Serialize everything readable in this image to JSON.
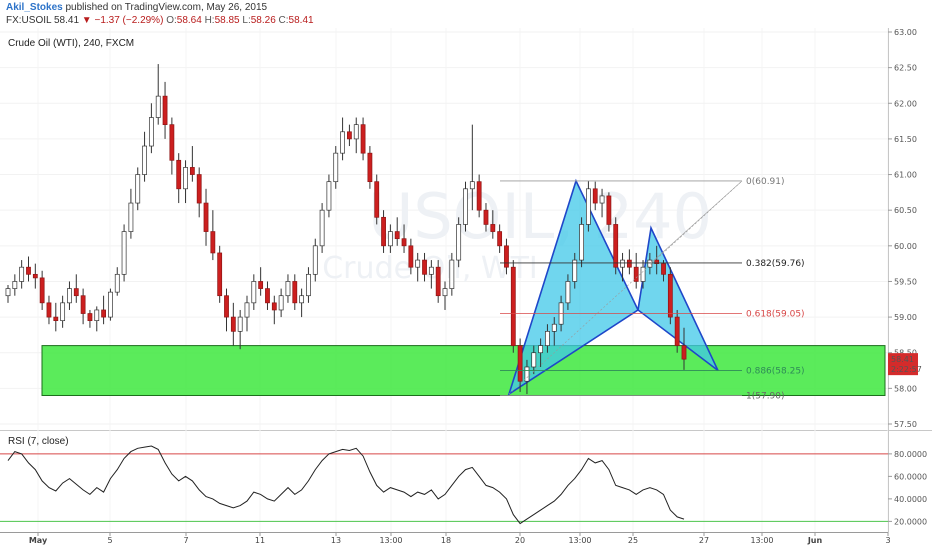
{
  "header": {
    "author": "Akil_Stokes",
    "published_text": " published on TradingView.com, May 26, 2015",
    "symbol": "FX:USOIL",
    "last": "58.41",
    "change": "▼ −1.37 (−2.29%)",
    "open_label": "O:",
    "open": "58.64",
    "high_label": "H:",
    "high": "58.85",
    "low_label": "L:",
    "low": "58.26",
    "close_label": "C:",
    "close": "58.41"
  },
  "chart_title": "Crude Oil (WTI), 240, FXCM",
  "watermark": {
    "line1": "USOIL, 240",
    "line2": "Crude Oil, WTI"
  },
  "price_badge": {
    "price": "58.41",
    "countdown": "2:22:57"
  },
  "rsi_title": "RSI (7, close)",
  "colors": {
    "bull": "#ffffff",
    "bear": "#cc1f1f",
    "wick": "#333333",
    "zone_fill": "#3ee83e",
    "zone_border": "#1b6e1b",
    "pattern_fill": "#40c8e8",
    "pattern_line": "#1f47c9",
    "rsi_line": "#222222",
    "rsi_upper": "#d84848",
    "rsi_lower": "#4cc44c"
  },
  "chart_data": [
    {
      "type": "candlestick",
      "title": "Crude Oil (WTI), 240, FXCM",
      "ylim": [
        57.5,
        63.0
      ],
      "yticks": [
        "63.00",
        "62.50",
        "62.00",
        "61.50",
        "61.00",
        "60.50",
        "60.00",
        "59.50",
        "59.00",
        "58.50",
        "58.00",
        "57.50"
      ],
      "xticks": [
        "May",
        "5",
        "7",
        "11",
        "13",
        "13:00",
        "18",
        "20",
        "13:00",
        "25",
        "27",
        "13:00",
        "Jun",
        "3"
      ],
      "ohlc": [
        [
          59.3,
          59.45,
          59.2,
          59.4
        ],
        [
          59.4,
          59.6,
          59.3,
          59.5
        ],
        [
          59.5,
          59.8,
          59.4,
          59.7
        ],
        [
          59.7,
          59.85,
          59.5,
          59.6
        ],
        [
          59.6,
          59.75,
          59.4,
          59.55
        ],
        [
          59.55,
          59.65,
          59.1,
          59.2
        ],
        [
          59.2,
          59.3,
          58.9,
          59.0
        ],
        [
          59.0,
          59.2,
          58.8,
          58.95
        ],
        [
          58.95,
          59.3,
          58.85,
          59.2
        ],
        [
          59.2,
          59.5,
          59.1,
          59.4
        ],
        [
          59.4,
          59.6,
          59.2,
          59.3
        ],
        [
          59.3,
          59.4,
          58.9,
          59.05
        ],
        [
          59.05,
          59.1,
          58.85,
          58.95
        ],
        [
          58.95,
          59.15,
          58.8,
          59.1
        ],
        [
          59.1,
          59.3,
          58.9,
          59.0
        ],
        [
          59.0,
          59.4,
          58.95,
          59.35
        ],
        [
          59.35,
          59.7,
          59.3,
          59.6
        ],
        [
          59.6,
          60.3,
          59.5,
          60.2
        ],
        [
          60.2,
          60.8,
          60.1,
          60.6
        ],
        [
          60.6,
          61.1,
          60.5,
          61.0
        ],
        [
          61.0,
          61.6,
          60.9,
          61.4
        ],
        [
          61.4,
          62.0,
          61.3,
          61.8
        ],
        [
          61.8,
          62.55,
          61.7,
          62.1
        ],
        [
          62.1,
          62.3,
          61.5,
          61.7
        ],
        [
          61.7,
          61.8,
          61.0,
          61.2
        ],
        [
          61.2,
          61.3,
          60.6,
          60.8
        ],
        [
          60.8,
          61.2,
          60.6,
          61.1
        ],
        [
          61.1,
          61.4,
          60.9,
          61.0
        ],
        [
          61.0,
          61.1,
          60.4,
          60.6
        ],
        [
          60.6,
          60.8,
          60.0,
          60.2
        ],
        [
          60.2,
          60.5,
          59.8,
          59.9
        ],
        [
          59.9,
          60.0,
          59.2,
          59.3
        ],
        [
          59.3,
          59.4,
          58.8,
          59.0
        ],
        [
          59.0,
          59.2,
          58.6,
          58.8
        ],
        [
          58.8,
          59.1,
          58.55,
          59.0
        ],
        [
          59.0,
          59.3,
          58.8,
          59.2
        ],
        [
          59.2,
          59.6,
          59.1,
          59.5
        ],
        [
          59.5,
          59.7,
          59.3,
          59.4
        ],
        [
          59.4,
          59.5,
          59.1,
          59.2
        ],
        [
          59.2,
          59.3,
          58.9,
          59.1
        ],
        [
          59.1,
          59.4,
          59.0,
          59.3
        ],
        [
          59.3,
          59.6,
          59.2,
          59.5
        ],
        [
          59.5,
          59.6,
          59.1,
          59.2
        ],
        [
          59.2,
          59.4,
          59.0,
          59.3
        ],
        [
          59.3,
          59.7,
          59.2,
          59.6
        ],
        [
          59.6,
          60.1,
          59.5,
          60.0
        ],
        [
          60.0,
          60.6,
          59.9,
          60.5
        ],
        [
          60.5,
          61.0,
          60.4,
          60.9
        ],
        [
          60.9,
          61.4,
          60.8,
          61.3
        ],
        [
          61.3,
          61.8,
          61.2,
          61.6
        ],
        [
          61.6,
          61.7,
          61.4,
          61.5
        ],
        [
          61.5,
          61.8,
          61.3,
          61.7
        ],
        [
          61.7,
          61.8,
          61.2,
          61.3
        ],
        [
          61.3,
          61.4,
          60.8,
          60.9
        ],
        [
          60.9,
          61.0,
          60.3,
          60.4
        ],
        [
          60.4,
          60.5,
          59.9,
          60.0
        ],
        [
          60.0,
          60.3,
          59.9,
          60.2
        ],
        [
          60.2,
          60.4,
          60.0,
          60.1
        ],
        [
          60.1,
          60.3,
          59.9,
          60.0
        ],
        [
          60.0,
          60.1,
          59.6,
          59.7
        ],
        [
          59.7,
          59.9,
          59.5,
          59.8
        ],
        [
          59.8,
          59.9,
          59.5,
          59.6
        ],
        [
          59.6,
          59.8,
          59.4,
          59.7
        ],
        [
          59.7,
          59.8,
          59.2,
          59.3
        ],
        [
          59.3,
          59.5,
          59.1,
          59.4
        ],
        [
          59.4,
          59.9,
          59.3,
          59.8
        ],
        [
          59.8,
          60.4,
          59.7,
          60.3
        ],
        [
          60.3,
          60.9,
          60.2,
          60.8
        ],
        [
          60.8,
          61.7,
          60.5,
          60.9
        ],
        [
          60.9,
          61.0,
          60.4,
          60.5
        ],
        [
          60.5,
          60.6,
          60.2,
          60.3
        ],
        [
          60.3,
          60.5,
          60.1,
          60.2
        ],
        [
          60.2,
          60.3,
          59.9,
          60.0
        ],
        [
          60.0,
          60.1,
          59.6,
          59.7
        ],
        [
          59.7,
          59.8,
          58.5,
          58.6
        ],
        [
          58.6,
          58.7,
          57.95,
          58.1
        ],
        [
          58.1,
          58.4,
          57.92,
          58.3
        ],
        [
          58.3,
          58.6,
          58.2,
          58.5
        ],
        [
          58.5,
          58.7,
          58.3,
          58.6
        ],
        [
          58.6,
          58.9,
          58.5,
          58.8
        ],
        [
          58.8,
          59.0,
          58.6,
          58.9
        ],
        [
          58.9,
          59.3,
          58.8,
          59.2
        ],
        [
          59.2,
          59.6,
          59.1,
          59.5
        ],
        [
          59.5,
          59.9,
          59.4,
          59.8
        ],
        [
          59.8,
          60.4,
          59.7,
          60.3
        ],
        [
          60.3,
          60.91,
          60.2,
          60.8
        ],
        [
          60.8,
          60.9,
          60.5,
          60.6
        ],
        [
          60.6,
          60.8,
          60.4,
          60.7
        ],
        [
          60.7,
          60.75,
          60.2,
          60.3
        ],
        [
          60.3,
          60.4,
          59.6,
          59.7
        ],
        [
          59.7,
          59.9,
          59.5,
          59.8
        ],
        [
          59.8,
          59.95,
          59.6,
          59.7
        ],
        [
          59.7,
          59.9,
          59.4,
          59.5
        ],
        [
          59.5,
          59.8,
          59.4,
          59.7
        ],
        [
          59.7,
          59.9,
          59.6,
          59.8
        ],
        [
          59.8,
          60.0,
          59.6,
          59.75
        ],
        [
          59.75,
          59.8,
          59.5,
          59.6
        ],
        [
          59.6,
          59.7,
          58.9,
          59.0
        ],
        [
          59.0,
          59.1,
          58.5,
          58.6
        ],
        [
          58.6,
          58.85,
          58.26,
          58.41
        ]
      ]
    },
    {
      "type": "line",
      "title": "RSI (7, close)",
      "ylim": [
        15,
        95
      ],
      "yticks": [
        "80.0000",
        "60.0000",
        "40.0000",
        "20.0000"
      ],
      "levels": {
        "upper": 80,
        "lower": 20
      },
      "values": [
        74,
        82,
        80,
        72,
        66,
        56,
        50,
        47,
        54,
        58,
        53,
        48,
        44,
        50,
        46,
        58,
        66,
        76,
        82,
        85,
        86,
        87,
        84,
        72,
        62,
        56,
        60,
        56,
        48,
        42,
        40,
        36,
        34,
        32,
        34,
        38,
        46,
        44,
        40,
        38,
        44,
        50,
        44,
        48,
        56,
        66,
        74,
        80,
        82,
        84,
        83,
        85,
        78,
        64,
        52,
        46,
        50,
        48,
        46,
        42,
        46,
        44,
        48,
        40,
        44,
        52,
        60,
        66,
        68,
        60,
        52,
        50,
        46,
        40,
        26,
        18,
        22,
        26,
        30,
        34,
        38,
        44,
        52,
        58,
        66,
        76,
        72,
        74,
        66,
        52,
        50,
        48,
        44,
        48,
        50,
        48,
        44,
        30,
        24,
        22
      ]
    }
  ],
  "annotations": {
    "zone": {
      "top": 58.6,
      "bottom": 57.9
    },
    "fib_labels": [
      "0(60.91)",
      "0.382(59.76)",
      "0.618(59.05)",
      "0.886(58.25)",
      "1(57.90)"
    ],
    "fib_levels": [
      60.91,
      59.76,
      59.05,
      58.25,
      57.9
    ]
  }
}
